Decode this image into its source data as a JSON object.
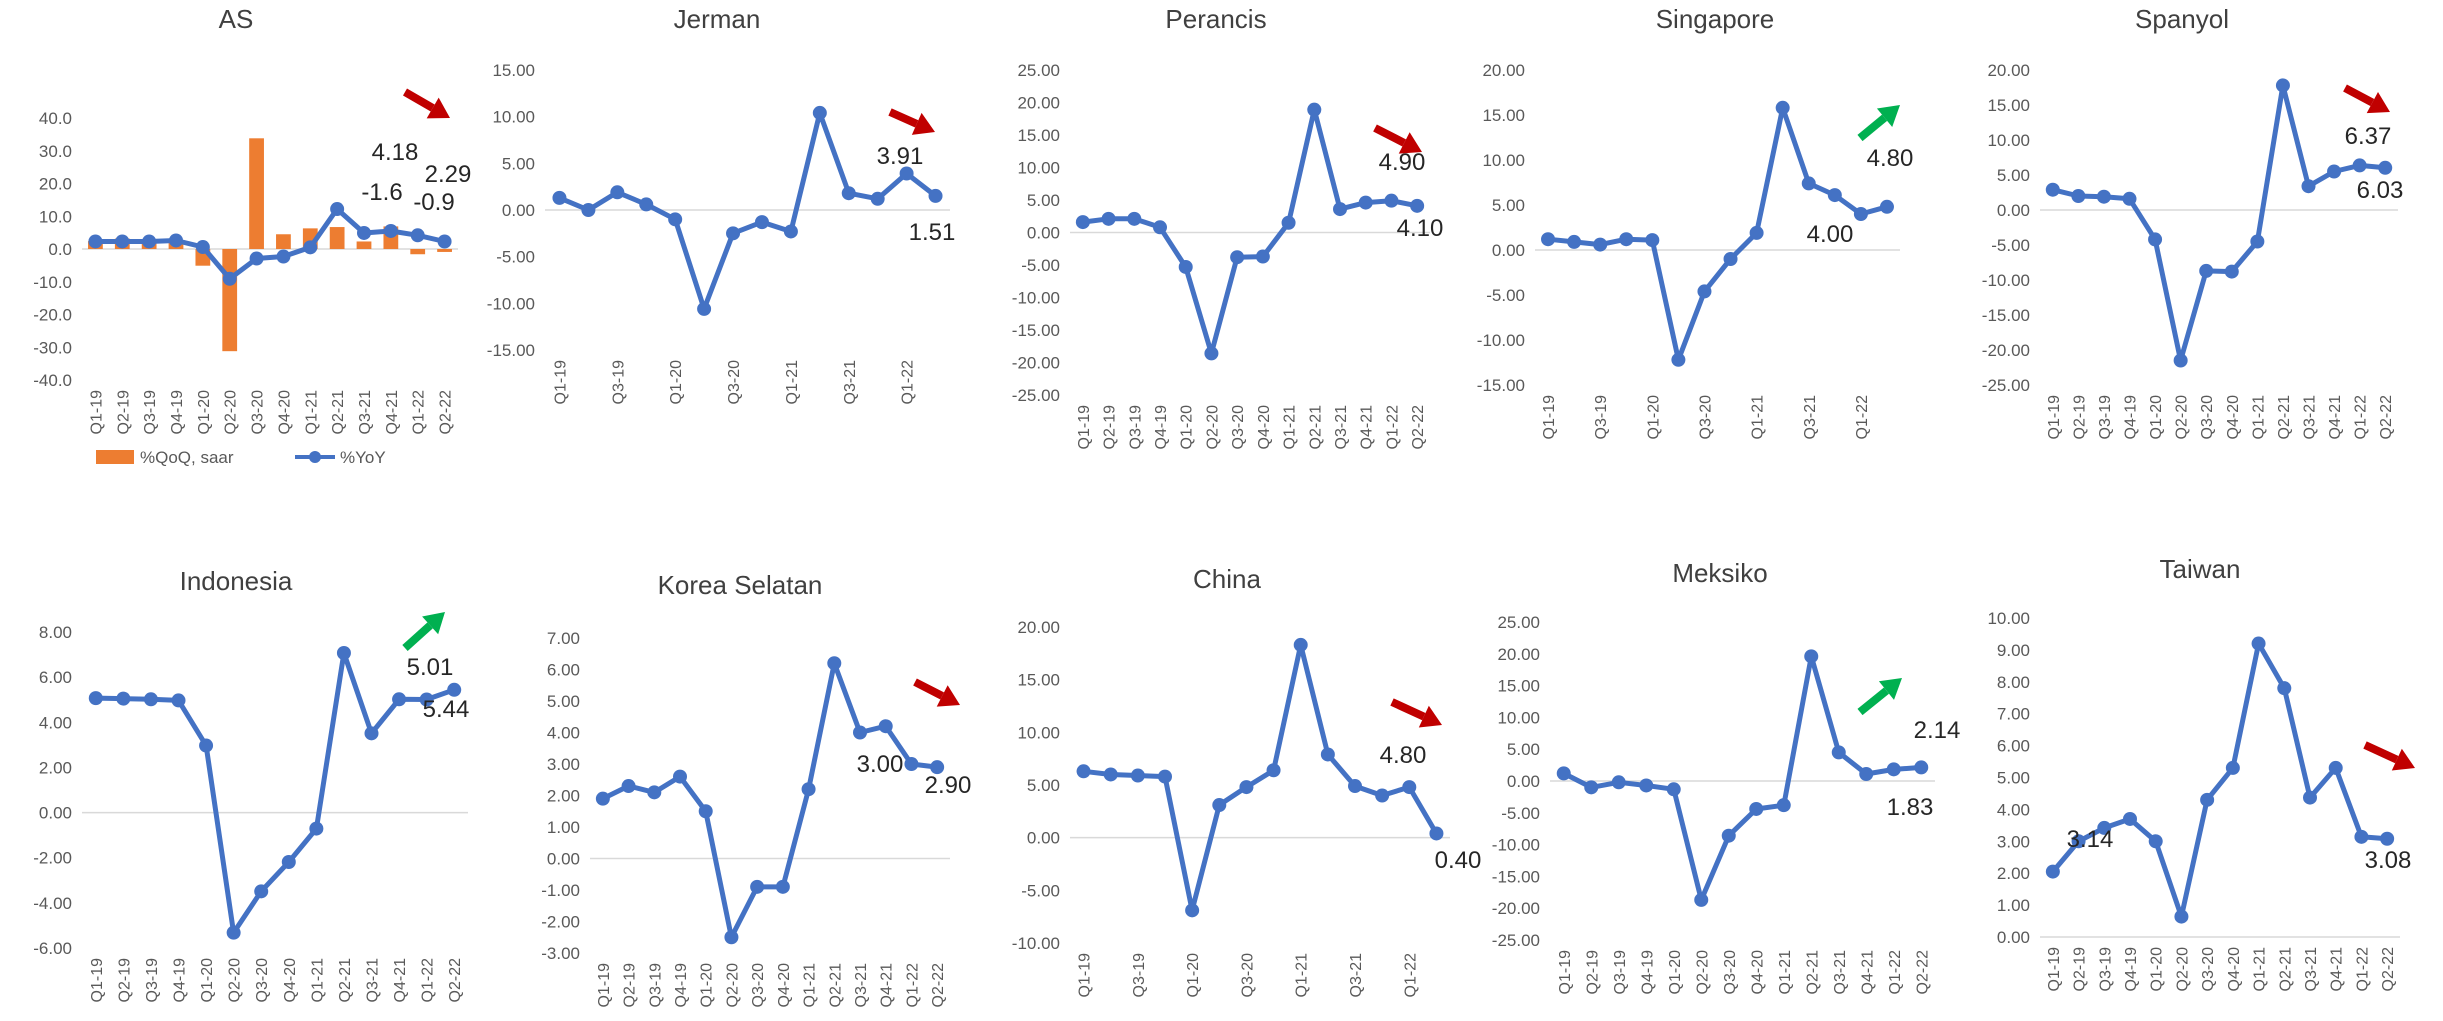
{
  "colors": {
    "line": "#4472C4",
    "bar": "#ED7D31",
    "arrow_down": "#C00000",
    "arrow_up": "#00B050",
    "axis_text": "#595959",
    "title": "#404040",
    "zero_line": "#D9D9D9"
  },
  "chart_data": [
    {
      "type": "bar+line",
      "title": "AS",
      "categories": [
        "Q1-19",
        "Q2-19",
        "Q3-19",
        "Q4-19",
        "Q1-20",
        "Q2-20",
        "Q3-20",
        "Q4-20",
        "Q1-21",
        "Q2-21",
        "Q3-21",
        "Q4-21",
        "Q1-22",
        "Q2-22"
      ],
      "ylim": [
        -40,
        40
      ],
      "y_ticks": [
        "40.0",
        "30.0",
        "20.0",
        "10.0",
        "0.0",
        "-10.0",
        "-20.0",
        "-30.0",
        "-40.0"
      ],
      "series": [
        {
          "name": "%QoQ, saar",
          "kind": "bar",
          "values": [
            2.4,
            3.2,
            2.8,
            1.9,
            -5.1,
            -31.2,
            33.8,
            4.5,
            6.3,
            6.7,
            2.3,
            6.9,
            -1.6,
            -0.9
          ]
        },
        {
          "name": "%YoY",
          "kind": "line",
          "values": [
            2.3,
            2.3,
            2.3,
            2.6,
            0.6,
            -9.1,
            -2.9,
            -2.3,
            0.5,
            12.2,
            4.9,
            5.5,
            4.18,
            2.29
          ]
        }
      ],
      "annotations": [
        "4.18",
        "2.29",
        "-1.6",
        "-0.9"
      ],
      "legend": "bottom",
      "arrow": "down"
    },
    {
      "type": "line",
      "title": "Jerman",
      "categories": [
        "Q1-19",
        "Q2-19",
        "Q3-19",
        "Q4-19",
        "Q1-20",
        "Q2-20",
        "Q3-20",
        "Q4-20",
        "Q1-21",
        "Q2-21",
        "Q3-21",
        "Q4-21",
        "Q1-22",
        "Q2-22"
      ],
      "x_tick_labels": [
        "Q1-19",
        "",
        "Q3-19",
        "",
        "Q1-20",
        "",
        "Q3-20",
        "",
        "Q1-21",
        "",
        "Q3-21",
        "",
        "Q1-22",
        ""
      ],
      "ylim": [
        -15,
        15
      ],
      "y_ticks": [
        "15.00",
        "10.00",
        "5.00",
        "0.00",
        "-5.00",
        "-10.00",
        "-15.00"
      ],
      "values": [
        1.3,
        0.0,
        1.9,
        0.6,
        -1.0,
        -10.6,
        -2.5,
        -1.3,
        -2.3,
        10.4,
        1.8,
        1.2,
        3.91,
        1.51
      ],
      "annotations": [
        "3.91",
        "1.51"
      ],
      "arrow": "down"
    },
    {
      "type": "line",
      "title": "Perancis",
      "categories": [
        "Q1-19",
        "Q2-19",
        "Q3-19",
        "Q4-19",
        "Q1-20",
        "Q2-20",
        "Q3-20",
        "Q4-20",
        "Q1-21",
        "Q2-21",
        "Q3-21",
        "Q4-21",
        "Q1-22",
        "Q2-22"
      ],
      "ylim": [
        -25,
        25
      ],
      "y_ticks": [
        "25.00",
        "20.00",
        "15.00",
        "10.00",
        "5.00",
        "0.00",
        "-5.00",
        "-10.00",
        "-15.00",
        "-20.00",
        "-25.00"
      ],
      "values": [
        1.6,
        2.1,
        2.1,
        0.8,
        -5.3,
        -18.6,
        -3.8,
        -3.7,
        1.5,
        18.9,
        3.6,
        4.6,
        4.9,
        4.1
      ],
      "annotations": [
        "4.90",
        "4.10"
      ],
      "arrow": "down"
    },
    {
      "type": "line",
      "title": "Singapore",
      "categories": [
        "Q1-19",
        "Q2-19",
        "Q3-19",
        "Q4-19",
        "Q1-20",
        "Q2-20",
        "Q3-20",
        "Q4-20",
        "Q1-21",
        "Q2-21",
        "Q3-21",
        "Q4-21",
        "Q1-22",
        "Q2-22"
      ],
      "x_tick_labels": [
        "Q1-19",
        "",
        "Q3-19",
        "",
        "Q1-20",
        "",
        "Q3-20",
        "",
        "Q1-21",
        "",
        "Q3-21",
        "",
        "Q1-22",
        ""
      ],
      "ylim": [
        -15,
        20
      ],
      "y_ticks": [
        "20.00",
        "15.00",
        "10.00",
        "5.00",
        "0.00",
        "-5.00",
        "-10.00",
        "-15.00"
      ],
      "values": [
        1.2,
        0.9,
        0.6,
        1.2,
        1.1,
        -12.2,
        -4.6,
        -1.0,
        1.9,
        15.8,
        7.4,
        6.1,
        4.0,
        4.8
      ],
      "annotations": [
        "4.00",
        "4.80"
      ],
      "arrow": "up"
    },
    {
      "type": "line",
      "title": "Spanyol",
      "categories": [
        "Q1-19",
        "Q2-19",
        "Q3-19",
        "Q4-19",
        "Q1-20",
        "Q2-20",
        "Q3-20",
        "Q4-20",
        "Q1-21",
        "Q2-21",
        "Q3-21",
        "Q4-21",
        "Q1-22",
        "Q2-22"
      ],
      "ylim": [
        -25,
        20
      ],
      "y_ticks": [
        "20.00",
        "15.00",
        "10.00",
        "5.00",
        "0.00",
        "-5.00",
        "-10.00",
        "-15.00",
        "-20.00",
        "-25.00"
      ],
      "values": [
        2.9,
        2.0,
        1.9,
        1.6,
        -4.2,
        -21.5,
        -8.7,
        -8.8,
        -4.5,
        17.8,
        3.4,
        5.5,
        6.37,
        6.03
      ],
      "annotations": [
        "6.37",
        "6.03"
      ],
      "arrow": "down"
    },
    {
      "type": "line",
      "title": "Indonesia",
      "categories": [
        "Q1-19",
        "Q2-19",
        "Q3-19",
        "Q4-19",
        "Q1-20",
        "Q2-20",
        "Q3-20",
        "Q4-20",
        "Q1-21",
        "Q2-21",
        "Q3-21",
        "Q4-21",
        "Q1-22",
        "Q2-22"
      ],
      "ylim": [
        -6,
        8
      ],
      "y_ticks": [
        "8.00",
        "6.00",
        "4.00",
        "2.00",
        "0.00",
        "-2.00",
        "-4.00",
        "-6.00"
      ],
      "values": [
        5.07,
        5.05,
        5.02,
        4.97,
        2.97,
        -5.32,
        -3.49,
        -2.19,
        -0.71,
        7.07,
        3.51,
        5.02,
        5.01,
        5.44
      ],
      "annotations": [
        "5.01",
        "5.44"
      ],
      "arrow": "up"
    },
    {
      "type": "line",
      "title": "Korea Selatan",
      "categories": [
        "Q1-19",
        "Q2-19",
        "Q3-19",
        "Q4-19",
        "Q1-20",
        "Q2-20",
        "Q3-20",
        "Q4-20",
        "Q1-21",
        "Q2-21",
        "Q3-21",
        "Q4-21",
        "Q1-22",
        "Q2-22"
      ],
      "ylim": [
        -3,
        7
      ],
      "y_ticks": [
        "7.00",
        "6.00",
        "5.00",
        "4.00",
        "3.00",
        "2.00",
        "1.00",
        "0.00",
        "-1.00",
        "-2.00",
        "-3.00"
      ],
      "values": [
        1.9,
        2.3,
        2.1,
        2.6,
        1.5,
        -2.5,
        -0.9,
        -0.9,
        2.2,
        6.2,
        4.0,
        4.2,
        3.0,
        2.9
      ],
      "annotations": [
        "3.00",
        "2.90"
      ],
      "arrow": "down"
    },
    {
      "type": "line",
      "title": "China",
      "categories": [
        "Q1-19",
        "Q2-19",
        "Q3-19",
        "Q4-19",
        "Q1-20",
        "Q2-20",
        "Q3-20",
        "Q4-20",
        "Q1-21",
        "Q2-21",
        "Q3-21",
        "Q4-21",
        "Q1-22",
        "Q2-22"
      ],
      "x_tick_labels": [
        "Q1-19",
        "",
        "Q3-19",
        "",
        "Q1-20",
        "",
        "Q3-20",
        "",
        "Q1-21",
        "",
        "Q3-21",
        "",
        "Q1-22",
        ""
      ],
      "ylim": [
        -10,
        20
      ],
      "y_ticks": [
        "20.00",
        "15.00",
        "10.00",
        "5.00",
        "0.00",
        "-5.00",
        "-10.00"
      ],
      "values": [
        6.3,
        6.0,
        5.9,
        5.8,
        -6.9,
        3.1,
        4.8,
        6.4,
        18.3,
        7.9,
        4.9,
        4.0,
        4.8,
        0.4
      ],
      "annotations": [
        "4.80",
        "0.40"
      ],
      "arrow": "down"
    },
    {
      "type": "line",
      "title": "Meksiko",
      "categories": [
        "Q1-19",
        "Q2-19",
        "Q3-19",
        "Q4-19",
        "Q1-20",
        "Q2-20",
        "Q3-20",
        "Q4-20",
        "Q1-21",
        "Q2-21",
        "Q3-21",
        "Q4-21",
        "Q1-22",
        "Q2-22"
      ],
      "ylim": [
        -25,
        25
      ],
      "y_ticks": [
        "25.00",
        "20.00",
        "15.00",
        "10.00",
        "5.00",
        "0.00",
        "-5.00",
        "-10.00",
        "-15.00",
        "-20.00",
        "-25.00"
      ],
      "values": [
        1.2,
        -1.0,
        -0.2,
        -0.7,
        -1.3,
        -18.7,
        -8.6,
        -4.4,
        -3.8,
        19.6,
        4.5,
        1.1,
        1.83,
        2.14
      ],
      "annotations": [
        "1.83",
        "2.14"
      ],
      "arrow": "up"
    },
    {
      "type": "line",
      "title": "Taiwan",
      "categories": [
        "Q1-19",
        "Q2-19",
        "Q3-19",
        "Q4-19",
        "Q1-20",
        "Q2-20",
        "Q3-20",
        "Q4-20",
        "Q1-21",
        "Q2-21",
        "Q3-21",
        "Q4-21",
        "Q1-22",
        "Q2-22"
      ],
      "ylim": [
        0,
        10
      ],
      "y_ticks": [
        "10.00",
        "9.00",
        "8.00",
        "7.00",
        "6.00",
        "5.00",
        "4.00",
        "3.00",
        "2.00",
        "1.00",
        "0.00"
      ],
      "values": [
        2.05,
        3.0,
        3.42,
        3.7,
        3.0,
        0.64,
        4.3,
        5.3,
        9.2,
        7.8,
        4.37,
        5.3,
        3.14,
        3.08
      ],
      "annotations": [
        "3.14",
        "3.08"
      ],
      "arrow": "down"
    }
  ]
}
